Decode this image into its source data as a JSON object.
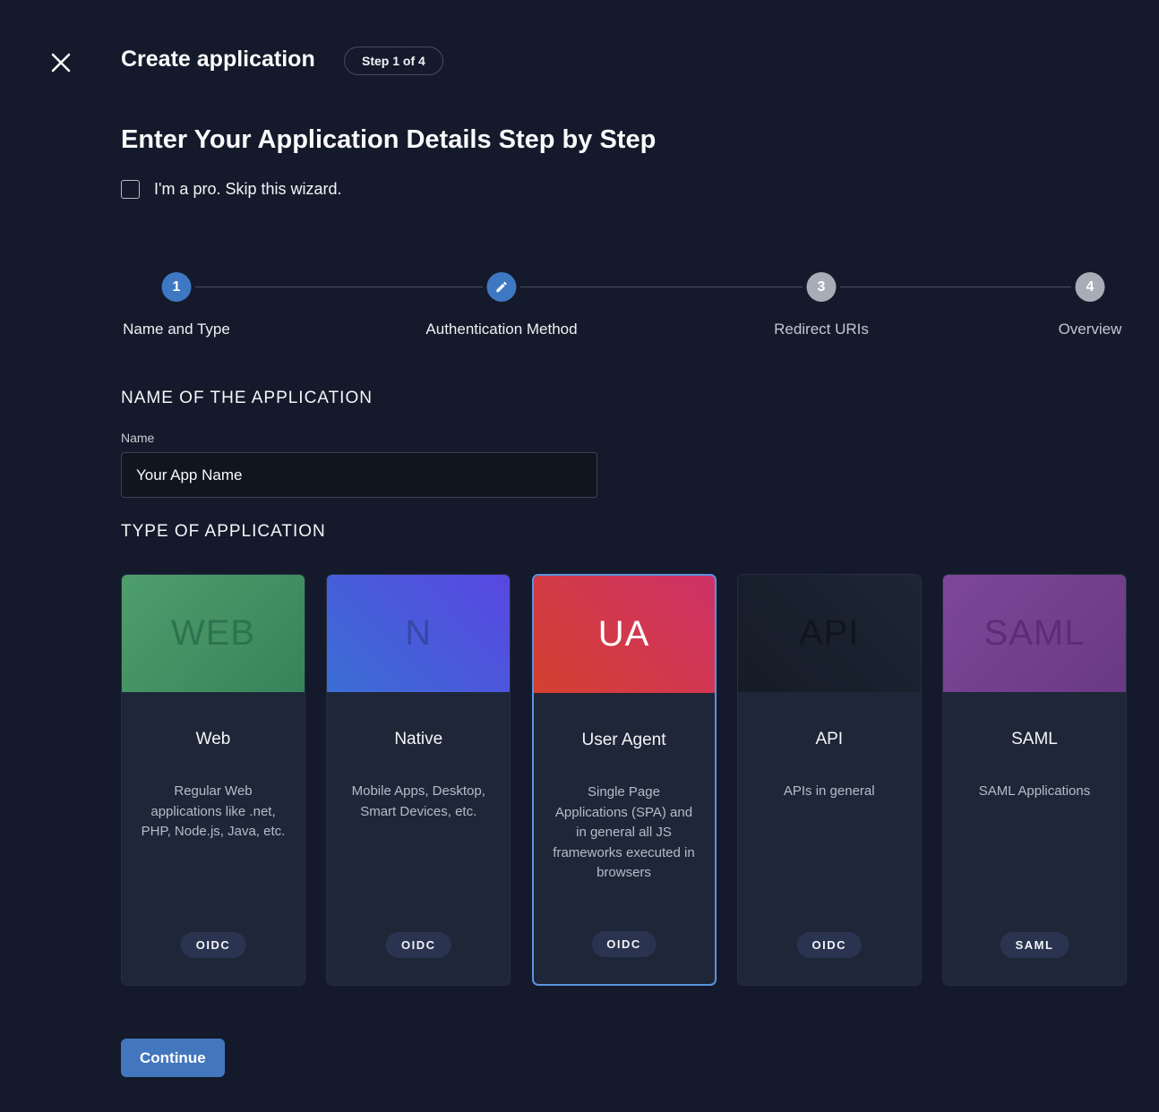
{
  "header": {
    "title": "Create application",
    "step_badge": "Step 1 of 4"
  },
  "main": {
    "heading": "Enter Your Application Details Step by Step",
    "skip_label": "I'm a pro. Skip this wizard.",
    "skip_checked": false
  },
  "stepper": {
    "steps": [
      {
        "number": "1",
        "label": "Name and Type",
        "active": true
      },
      {
        "icon": "pencil-icon",
        "label": "Authentication Method",
        "active": true
      },
      {
        "number": "3",
        "label": "Redirect URIs",
        "active": false
      },
      {
        "number": "4",
        "label": "Overview",
        "active": false
      }
    ]
  },
  "name_section": {
    "title": "NAME OF THE APPLICATION",
    "field_label": "Name",
    "field_value": "Your App Name"
  },
  "type_section": {
    "title": "TYPE OF APPLICATION",
    "cards": [
      {
        "banner": "WEB",
        "banner_angle": "135deg",
        "banner_from": "#4f9e6d",
        "banner_to": "#37835a",
        "banner_text_color": "#2d7350",
        "title": "Web",
        "description": "Regular Web applications like .net, PHP, Node.js, Java, etc.",
        "badge": "OIDC",
        "selected": false
      },
      {
        "banner": "N",
        "banner_angle": "45deg",
        "banner_from": "#3b6ed4",
        "banner_to": "#5847e1",
        "banner_text_color": "#3748a5",
        "title": "Native",
        "description": "Mobile Apps, Desktop, Smart Devices, etc.",
        "badge": "OIDC",
        "selected": false
      },
      {
        "banner": "UA",
        "banner_angle": "45deg",
        "banner_from": "#d5402f",
        "banner_to": "#ce3168",
        "banner_text_color": "#ffffff",
        "title": "User Agent",
        "description": "Single Page Applications (SPA) and in general all JS frameworks executed in browsers",
        "badge": "OIDC",
        "selected": true
      },
      {
        "banner": "API",
        "banner_angle": "45deg",
        "banner_from": "#151b27",
        "banner_to": "#1e2634",
        "banner_text_color": "#10151d",
        "title": "API",
        "description": "APIs in general",
        "badge": "OIDC",
        "selected": false
      },
      {
        "banner": "SAML",
        "banner_angle": "135deg",
        "banner_from": "#7e4798",
        "banner_to": "#693983",
        "banner_text_color": "#5c2d74",
        "title": "SAML",
        "description": "SAML Applications",
        "badge": "SAML",
        "selected": false
      }
    ]
  },
  "footer": {
    "continue_label": "Continue"
  },
  "colors": {
    "page_bg": "#141a2b",
    "card_bg": "#1e2638",
    "accent_blue": "#4377bd",
    "selected_border": "#5b93de",
    "step_active": "#3f78c2",
    "step_inactive": "#a7acb6",
    "badge_bg": "#2a3450"
  }
}
